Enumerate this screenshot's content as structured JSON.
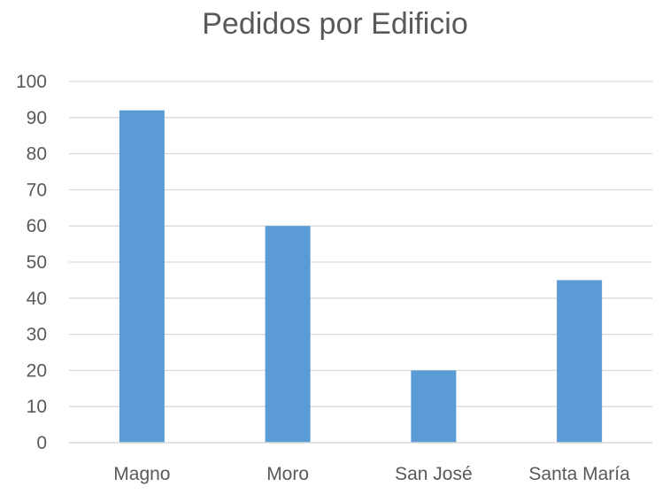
{
  "chart_data": {
    "type": "bar",
    "title": "Pedidos por Edificio",
    "xlabel": "",
    "ylabel": "",
    "categories": [
      "Magno",
      "Moro",
      "San José",
      "Santa María"
    ],
    "values": [
      92,
      60,
      20,
      45
    ],
    "ylim": [
      0,
      100
    ],
    "yticks": [
      "0",
      "10",
      "20",
      "30",
      "40",
      "50",
      "60",
      "70",
      "80",
      "90",
      "100"
    ],
    "grid": true,
    "legend": "none",
    "colors": {
      "bar": "#5b9bd5",
      "grid": "#d9d9d9",
      "axis": "#d9d9d9",
      "text": "#595959"
    }
  }
}
